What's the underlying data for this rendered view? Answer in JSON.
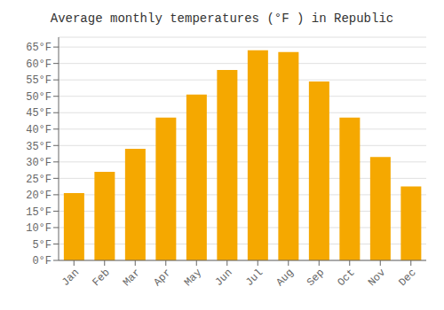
{
  "chart_data": {
    "type": "bar",
    "title": "Average monthly temperatures (°F ) in Republic",
    "categories": [
      "Jan",
      "Feb",
      "Mar",
      "Apr",
      "May",
      "Jun",
      "Jul",
      "Aug",
      "Sep",
      "Oct",
      "Nov",
      "Dec"
    ],
    "values": [
      20.5,
      27.0,
      34.0,
      43.5,
      50.5,
      58.0,
      64.0,
      63.5,
      54.5,
      43.5,
      31.5,
      22.5
    ],
    "color": "#F5A800",
    "ylim": [
      0,
      68
    ],
    "yticks": [
      {
        "value": 0,
        "label": "0°F"
      },
      {
        "value": 5,
        "label": "5°F"
      },
      {
        "value": 10,
        "label": "10°F"
      },
      {
        "value": 15,
        "label": "15°F"
      },
      {
        "value": 20,
        "label": "20°F"
      },
      {
        "value": 25,
        "label": "25°F"
      },
      {
        "value": 30,
        "label": "30°F"
      },
      {
        "value": 35,
        "label": "35°F"
      },
      {
        "value": 40,
        "label": "40°F"
      },
      {
        "value": 45,
        "label": "45°F"
      },
      {
        "value": 50,
        "label": "50°F"
      },
      {
        "value": 55,
        "label": "55°F"
      },
      {
        "value": 60,
        "label": "60°F"
      },
      {
        "value": 65,
        "label": "65°F"
      }
    ],
    "grid": true
  }
}
